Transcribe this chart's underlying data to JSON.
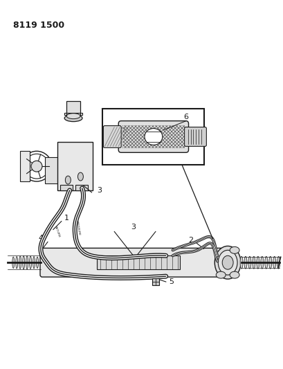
{
  "title_code": "8119 1500",
  "bg_color": "#ffffff",
  "line_color": "#1a1a1a",
  "fig_width": 4.1,
  "fig_height": 5.33,
  "dpi": 100
}
